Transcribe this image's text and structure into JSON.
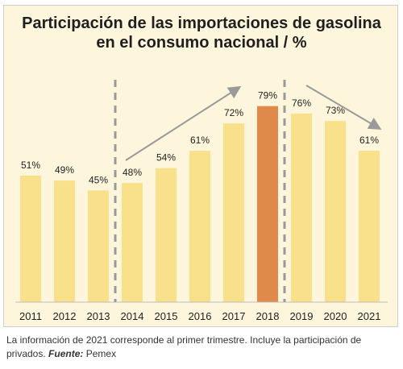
{
  "title": {
    "line1": "Participación de las importaciones de gasolina",
    "line2": "en el consumo nacional / %"
  },
  "footnote": {
    "text": "La información de 2021 corresponde al primer trimestre. Incluye la participación de privados.",
    "source_label": "Fuente:",
    "source": "Pemex"
  },
  "colors": {
    "bar": "#f8e18a",
    "highlight": "#e0894a",
    "background": "#fdf6dc",
    "divider": "#999999",
    "arrow": "#9a9a9a"
  },
  "chart_data": {
    "type": "bar",
    "categories": [
      "2011",
      "2012",
      "2013",
      "2014",
      "2015",
      "2016",
      "2017",
      "2018",
      "2019",
      "2020",
      "2021"
    ],
    "values": [
      51,
      49,
      45,
      48,
      54,
      61,
      72,
      79,
      76,
      73,
      61
    ],
    "labels": [
      "51%",
      "49%",
      "45%",
      "48%",
      "54%",
      "61%",
      "72%",
      "79%",
      "76%",
      "73%",
      "61%"
    ],
    "highlight_category": "2018",
    "dividers_between": [
      [
        "2013",
        "2014"
      ],
      [
        "2018",
        "2019"
      ]
    ],
    "trend_arrows": [
      "up: 2014–2017",
      "down: 2019–2021"
    ],
    "ylim": [
      0,
      100
    ],
    "grid": false
  }
}
